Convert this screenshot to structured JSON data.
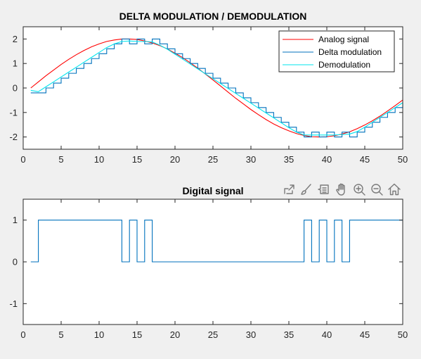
{
  "figure": {
    "toolbar_icons": [
      "export-icon",
      "brush-icon",
      "data-tips-icon",
      "pan-hand-icon",
      "zoom-in-icon",
      "zoom-out-icon",
      "home-icon"
    ]
  },
  "chart_data": [
    {
      "type": "line",
      "title": "DELTA MODULATION / DEMODULATION",
      "xlabel": "",
      "ylabel": "",
      "xlim": [
        0,
        50
      ],
      "ylim": [
        -2.5,
        2.5
      ],
      "xticks": [
        0,
        5,
        10,
        15,
        20,
        25,
        30,
        35,
        40,
        45,
        50
      ],
      "yticks": [
        -2,
        -1,
        0,
        1,
        2
      ],
      "grid": false,
      "legend_position": "top-right",
      "series": [
        {
          "name": "Analog signal",
          "style": "line",
          "color": "#ff0000",
          "x": [
            1,
            2,
            3,
            4,
            5,
            6,
            7,
            8,
            9,
            10,
            11,
            12,
            13,
            14,
            15,
            16,
            17,
            18,
            19,
            20,
            21,
            22,
            23,
            24,
            25,
            26,
            27,
            28,
            29,
            30,
            31,
            32,
            33,
            34,
            35,
            36,
            37,
            38,
            39,
            40,
            41,
            42,
            43,
            44,
            45,
            46,
            47,
            48,
            49,
            50
          ],
          "values": [
            0,
            0.25,
            0.5,
            0.73,
            0.96,
            1.17,
            1.36,
            1.53,
            1.68,
            1.8,
            1.9,
            1.96,
            2.0,
            2.0,
            1.98,
            1.92,
            1.84,
            1.73,
            1.59,
            1.42,
            1.24,
            1.03,
            0.81,
            0.57,
            0.33,
            0.08,
            -0.17,
            -0.42,
            -0.65,
            -0.88,
            -1.09,
            -1.29,
            -1.47,
            -1.62,
            -1.75,
            -1.86,
            -1.94,
            -1.99,
            -2.0,
            -1.99,
            -1.95,
            -1.88,
            -1.79,
            -1.66,
            -1.51,
            -1.34,
            -1.15,
            -0.94,
            -0.72,
            -0.49
          ]
        },
        {
          "name": "Delta modulation",
          "style": "stairs",
          "color": "#0072bd",
          "x": [
            1,
            2,
            3,
            4,
            5,
            6,
            7,
            8,
            9,
            10,
            11,
            12,
            13,
            14,
            15,
            16,
            17,
            18,
            19,
            20,
            21,
            22,
            23,
            24,
            25,
            26,
            27,
            28,
            29,
            30,
            31,
            32,
            33,
            34,
            35,
            36,
            37,
            38,
            39,
            40,
            41,
            42,
            43,
            44,
            45,
            46,
            47,
            48,
            49,
            50
          ],
          "values": [
            -0.2,
            -0.2,
            0.0,
            0.2,
            0.4,
            0.6,
            0.8,
            1.0,
            1.2,
            1.4,
            1.6,
            1.8,
            2.0,
            1.8,
            2.0,
            1.8,
            2.0,
            1.8,
            1.6,
            1.4,
            1.2,
            1.0,
            0.8,
            0.6,
            0.4,
            0.2,
            0.0,
            -0.2,
            -0.4,
            -0.6,
            -0.8,
            -1.0,
            -1.2,
            -1.4,
            -1.6,
            -1.8,
            -2.0,
            -1.8,
            -2.0,
            -1.8,
            -2.0,
            -1.8,
            -2.0,
            -1.8,
            -1.6,
            -1.4,
            -1.2,
            -1.0,
            -0.8,
            -0.6
          ]
        },
        {
          "name": "Demodulation",
          "style": "line",
          "color": "#00e5ee",
          "x": [
            1,
            2,
            3,
            4,
            5,
            6,
            7,
            8,
            9,
            10,
            11,
            12,
            13,
            14,
            15,
            16,
            17,
            18,
            19,
            20,
            21,
            22,
            23,
            24,
            25,
            26,
            27,
            28,
            29,
            30,
            31,
            32,
            33,
            34,
            35,
            36,
            37,
            38,
            39,
            40,
            41,
            42,
            43,
            44,
            45,
            46,
            47,
            48,
            49,
            50
          ],
          "values": [
            -0.1,
            -0.15,
            0.05,
            0.25,
            0.45,
            0.65,
            0.85,
            1.05,
            1.25,
            1.45,
            1.65,
            1.8,
            1.9,
            1.92,
            1.9,
            1.9,
            1.88,
            1.75,
            1.58,
            1.38,
            1.18,
            0.98,
            0.78,
            0.58,
            0.38,
            0.18,
            -0.02,
            -0.22,
            -0.42,
            -0.62,
            -0.82,
            -1.02,
            -1.22,
            -1.42,
            -1.62,
            -1.8,
            -1.92,
            -1.92,
            -1.92,
            -1.92,
            -1.92,
            -1.9,
            -1.88,
            -1.78,
            -1.6,
            -1.4,
            -1.2,
            -1.0,
            -0.8,
            -0.6
          ]
        }
      ]
    },
    {
      "type": "line",
      "title": "Digital signal",
      "xlabel": "",
      "ylabel": "",
      "xlim": [
        0,
        50
      ],
      "ylim": [
        -1.5,
        1.5
      ],
      "xticks": [
        0,
        5,
        10,
        15,
        20,
        25,
        30,
        35,
        40,
        45,
        50
      ],
      "yticks": [
        -1,
        0,
        1
      ],
      "grid": false,
      "series": [
        {
          "style": "stairs",
          "color": "#0072bd",
          "x": [
            1,
            2,
            3,
            4,
            5,
            6,
            7,
            8,
            9,
            10,
            11,
            12,
            13,
            14,
            15,
            16,
            17,
            18,
            19,
            20,
            21,
            22,
            23,
            24,
            25,
            26,
            27,
            28,
            29,
            30,
            31,
            32,
            33,
            34,
            35,
            36,
            37,
            38,
            39,
            40,
            41,
            42,
            43,
            44,
            45,
            46,
            47,
            48,
            49,
            50
          ],
          "values": [
            0,
            1,
            1,
            1,
            1,
            1,
            1,
            1,
            1,
            1,
            1,
            1,
            0,
            1,
            0,
            1,
            0,
            0,
            0,
            0,
            0,
            0,
            0,
            0,
            0,
            0,
            0,
            0,
            0,
            0,
            0,
            0,
            0,
            0,
            0,
            0,
            1,
            0,
            1,
            0,
            1,
            0,
            1,
            1,
            1,
            1,
            1,
            1,
            1,
            1
          ]
        }
      ]
    }
  ]
}
